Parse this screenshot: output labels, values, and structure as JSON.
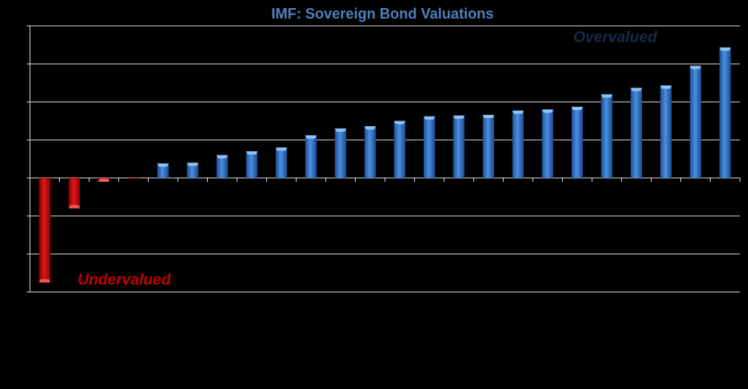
{
  "chart_data": {
    "type": "bar",
    "title": "IMF:  Sovereign Bond Valuations",
    "xlabel": "",
    "ylabel": "",
    "ylim": [
      -3,
      4
    ],
    "grid": true,
    "legend": "none",
    "values": [
      -2.75,
      -0.8,
      -0.1,
      -0.02,
      0.38,
      0.4,
      0.6,
      0.7,
      0.8,
      1.12,
      1.3,
      1.36,
      1.5,
      1.62,
      1.64,
      1.66,
      1.77,
      1.8,
      1.87,
      2.2,
      2.37,
      2.43,
      2.95,
      3.43
    ],
    "annotations": {
      "overvalued": "Overvalued",
      "undervalued": "Undervalued"
    },
    "colors": {
      "positive": "#3a78c9",
      "positive_light": "#8ec4f2",
      "negative": "#c91010",
      "negative_light": "#f05a5a",
      "title": "#4f81bd",
      "overvalued_text": "#17294a",
      "undervalued_text": "#c00000",
      "grid": "#d9d9d9"
    }
  }
}
